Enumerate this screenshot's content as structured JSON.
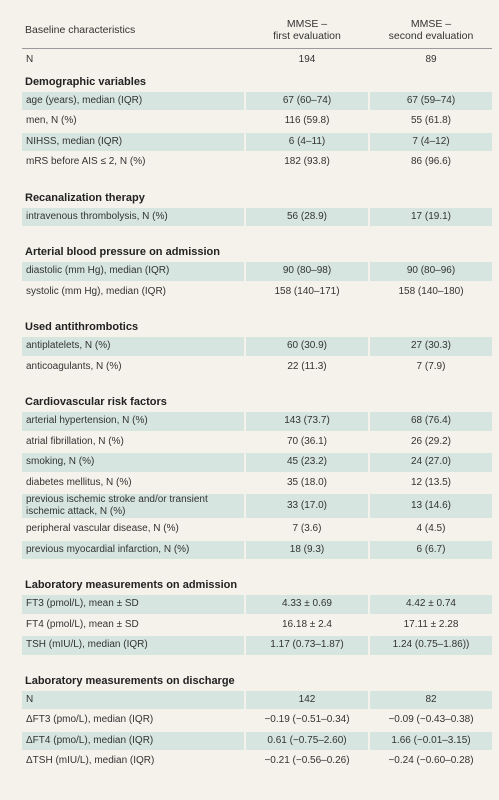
{
  "header": {
    "label": "Baseline characteristics",
    "columns": [
      [
        "MMSE –",
        "first evaluation"
      ],
      [
        "MMSE –",
        "second evaluation"
      ]
    ]
  },
  "top_rows": [
    [
      "N",
      "194",
      "89"
    ]
  ],
  "sections": [
    {
      "title": "Demographic variables",
      "rows": [
        [
          "age (years), median (IQR)",
          "67 (60–74)",
          "67 (59–74)"
        ],
        [
          "men, N (%)",
          "116 (59.8)",
          "55 (61.8)"
        ],
        [
          "NIHSS, median (IQR)",
          "6 (4–11)",
          "7 (4–12)"
        ],
        [
          "mRS before AIS ≤ 2, N (%)",
          "182 (93.8)",
          "86 (96.6)"
        ]
      ]
    },
    {
      "title": "Recanalization therapy",
      "rows": [
        [
          "intravenous thrombolysis, N (%)",
          "56 (28.9)",
          "17 (19.1)"
        ]
      ]
    },
    {
      "title": "Arterial blood pressure on admission",
      "rows": [
        [
          "diastolic (mm Hg), median (IQR)",
          "90 (80–98)",
          "90 (80–96)"
        ],
        [
          "systolic (mm Hg), median (IQR)",
          "158 (140–171)",
          "158 (140–180)"
        ]
      ]
    },
    {
      "title": "Used antithrombotics",
      "rows": [
        [
          "antiplatelets, N (%)",
          "60 (30.9)",
          "27 (30.3)"
        ],
        [
          "anticoagulants, N (%)",
          "22 (11.3)",
          "7 (7.9)"
        ]
      ]
    },
    {
      "title": "Cardiovascular risk factors",
      "rows": [
        [
          "arterial hypertension, N (%)",
          "143 (73.7)",
          "68 (76.4)"
        ],
        [
          "atrial fibrillation, N (%)",
          "70 (36.1)",
          "26 (29.2)"
        ],
        [
          "smoking, N (%)",
          "45 (23.2)",
          "24 (27.0)"
        ],
        [
          "diabetes mellitus, N (%)",
          "35 (18.0)",
          "12 (13.5)"
        ],
        [
          "previous ischemic stroke and/or transient ischemic attack, N (%)",
          "33 (17.0)",
          "13 (14.6)"
        ],
        [
          "peripheral vascular disease, N (%)",
          "7 (3.6)",
          "4 (4.5)"
        ],
        [
          "previous myocardial infarction, N (%)",
          "18 (9.3)",
          "6 (6.7)"
        ]
      ]
    },
    {
      "title": "Laboratory measurements on admission",
      "rows": [
        [
          "FT3 (pmol/L), mean ± SD",
          "4.33 ± 0.69",
          "4.42 ± 0.74"
        ],
        [
          "FT4 (pmol/L), mean ± SD",
          "16.18 ± 2.4",
          "17.11 ± 2.28"
        ],
        [
          "TSH (mIU/L), median (IQR)",
          "1.17 (0.73–1.87)",
          "1.24 (0.75–1.86))"
        ]
      ]
    },
    {
      "title": "Laboratory measurements on discharge",
      "rows": [
        [
          "N",
          "142",
          "82"
        ],
        [
          "ΔFT3 (pmo/L), median (IQR)",
          "−0.19 (−0.51–0.34)",
          "−0.09 (−0.43–0.38)"
        ],
        [
          "ΔFT4 (pmo/L), median (IQR)",
          "0.61 (−0.75–2.60)",
          "1.66 (−0.01–3.15)"
        ],
        [
          "ΔTSH (mIU/L), median (IQR)",
          "−0.21 (−0.56–0.26)",
          "−0.24 (−0.60–0.28)"
        ]
      ]
    }
  ]
}
